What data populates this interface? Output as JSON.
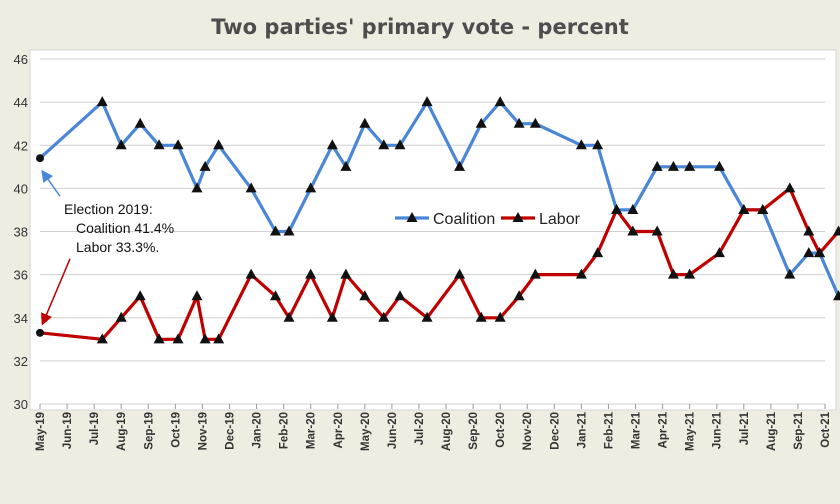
{
  "chart_data": {
    "type": "line",
    "title": "Two parties' primary vote - percent",
    "ylim": [
      30,
      46
    ],
    "y_ticks": [
      "30",
      "32",
      "34",
      "36",
      "38",
      "40",
      "42",
      "44",
      "46"
    ],
    "x_tick_labels": [
      "May-19",
      "Jun-19",
      "Jul-19",
      "Aug-19",
      "Sep-19",
      "Oct-19",
      "Nov-19",
      "Dec-19",
      "Jan-20",
      "Feb-20",
      "Mar-20",
      "Apr-20",
      "May-20",
      "Jun-20",
      "Jul-20",
      "Aug-20",
      "Sep-20",
      "Oct-20",
      "Nov-20",
      "Dec-20",
      "Jan-21",
      "Feb-21",
      "Mar-21",
      "Apr-21",
      "May-21",
      "Jun-21",
      "Jul-21",
      "Aug-21",
      "Sep-21",
      "Oct-21"
    ],
    "grid": "horizontal",
    "legend_position": "center-right",
    "series": [
      {
        "name": "Coalition",
        "color": "#4a86d8",
        "points": [
          [
            0,
            41.4
          ],
          [
            2.3,
            44
          ],
          [
            3,
            42
          ],
          [
            3.7,
            43
          ],
          [
            4.4,
            42
          ],
          [
            5.1,
            42
          ],
          [
            5.8,
            40
          ],
          [
            6.1,
            41
          ],
          [
            6.6,
            42
          ],
          [
            7.8,
            40
          ],
          [
            8.7,
            38
          ],
          [
            9.2,
            38
          ],
          [
            10,
            40
          ],
          [
            10.8,
            42
          ],
          [
            11.3,
            41
          ],
          [
            12,
            43
          ],
          [
            12.7,
            42
          ],
          [
            13.3,
            42
          ],
          [
            14.3,
            44
          ],
          [
            15.5,
            41
          ],
          [
            16.3,
            43
          ],
          [
            17,
            44
          ],
          [
            17.7,
            43
          ],
          [
            18.3,
            43
          ],
          [
            20,
            42
          ],
          [
            20.6,
            42
          ],
          [
            21.3,
            39
          ],
          [
            21.9,
            39
          ],
          [
            22.8,
            41
          ],
          [
            23.4,
            41
          ],
          [
            24,
            41
          ],
          [
            25.1,
            41
          ],
          [
            26,
            39
          ],
          [
            26.7,
            39
          ],
          [
            27.7,
            36
          ],
          [
            28.4,
            37
          ],
          [
            28.8,
            37
          ],
          [
            29.5,
            35
          ]
        ]
      },
      {
        "name": "Labor",
        "color": "#c00000",
        "points": [
          [
            0,
            33.3
          ],
          [
            2.3,
            33
          ],
          [
            3,
            34
          ],
          [
            3.7,
            35
          ],
          [
            4.4,
            33
          ],
          [
            5.1,
            33
          ],
          [
            5.8,
            35
          ],
          [
            6.1,
            33
          ],
          [
            6.6,
            33
          ],
          [
            7.8,
            36
          ],
          [
            8.7,
            35
          ],
          [
            9.2,
            34
          ],
          [
            10,
            36
          ],
          [
            10.8,
            34
          ],
          [
            11.3,
            36
          ],
          [
            12,
            35
          ],
          [
            12.7,
            34
          ],
          [
            13.3,
            35
          ],
          [
            14.3,
            34
          ],
          [
            15.5,
            36
          ],
          [
            16.3,
            34
          ],
          [
            17,
            34
          ],
          [
            17.7,
            35
          ],
          [
            18.3,
            36
          ],
          [
            20,
            36
          ],
          [
            20.6,
            37
          ],
          [
            21.3,
            39
          ],
          [
            21.9,
            38
          ],
          [
            22.8,
            38
          ],
          [
            23.4,
            36
          ],
          [
            24,
            36
          ],
          [
            25.1,
            37
          ],
          [
            26,
            39
          ],
          [
            26.7,
            39
          ],
          [
            27.7,
            40
          ],
          [
            28.4,
            38
          ],
          [
            28.8,
            37
          ],
          [
            29.5,
            38
          ]
        ]
      }
    ],
    "annotation": {
      "lines": [
        "Election 2019:",
        "Coalition  41.4%",
        "Labor 33.3%."
      ]
    }
  }
}
